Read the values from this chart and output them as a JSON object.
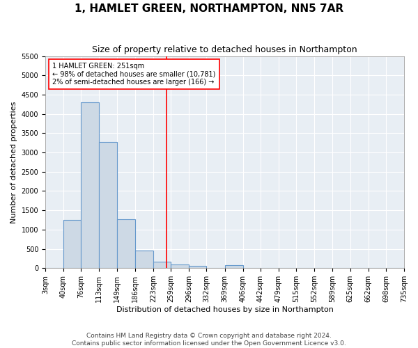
{
  "title": "1, HAMLET GREEN, NORTHAMPTON, NN5 7AR",
  "subtitle": "Size of property relative to detached houses in Northampton",
  "xlabel": "Distribution of detached houses by size in Northampton",
  "ylabel": "Number of detached properties",
  "bar_color": "#cdd9e5",
  "bar_edge_color": "#6699cc",
  "background_color": "#e8eef4",
  "grid_color": "white",
  "red_line_x": 251,
  "annotation_text": "1 HAMLET GREEN: 251sqm\n← 98% of detached houses are smaller (10,781)\n2% of semi-detached houses are larger (166) →",
  "footer": "Contains HM Land Registry data © Crown copyright and database right 2024.\nContains public sector information licensed under the Open Government Licence v3.0.",
  "bin_edges": [
    3,
    40,
    76,
    113,
    149,
    186,
    223,
    259,
    296,
    332,
    369,
    406,
    442,
    479,
    515,
    552,
    589,
    625,
    662,
    698,
    735
  ],
  "bin_counts": [
    0,
    1255,
    4300,
    3270,
    1270,
    460,
    170,
    90,
    50,
    0,
    70,
    0,
    0,
    0,
    0,
    0,
    0,
    0,
    0,
    0
  ],
  "ylim": [
    0,
    5500
  ],
  "yticks": [
    0,
    500,
    1000,
    1500,
    2000,
    2500,
    3000,
    3500,
    4000,
    4500,
    5000,
    5500
  ],
  "title_fontsize": 11,
  "subtitle_fontsize": 9,
  "axis_label_fontsize": 8,
  "tick_fontsize": 7,
  "annotation_fontsize": 7,
  "footer_fontsize": 6.5
}
